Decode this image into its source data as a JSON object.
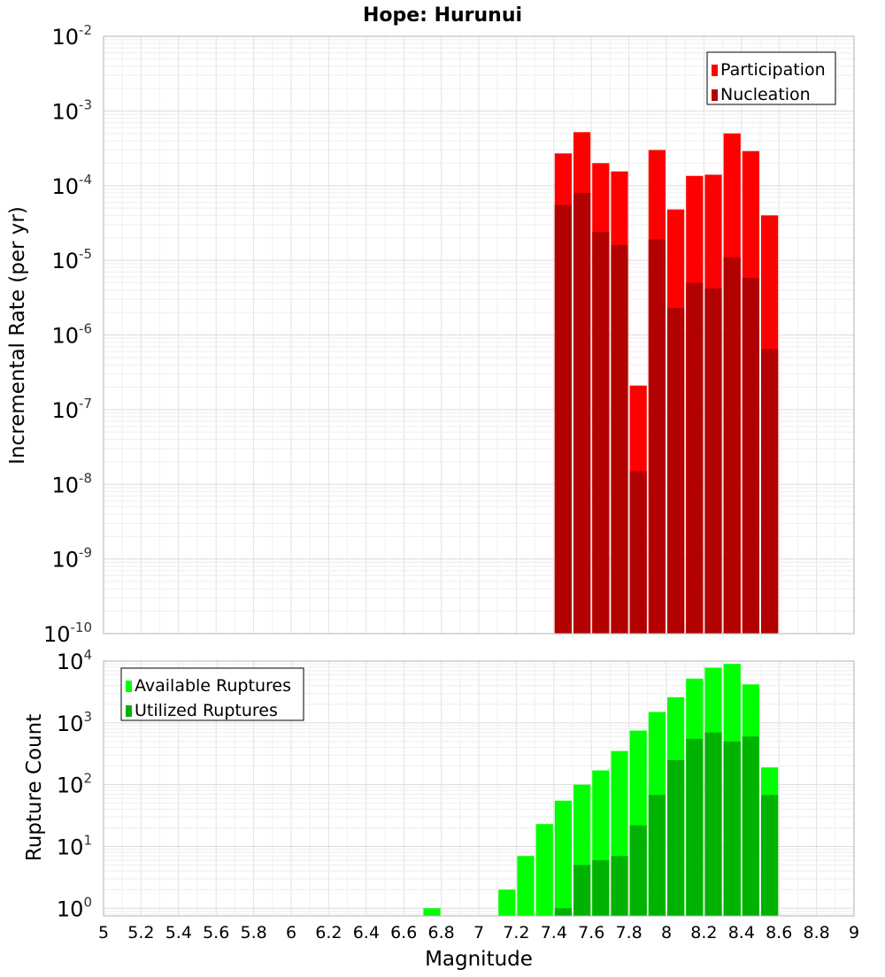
{
  "chart_data": [
    {
      "type": "bar",
      "title": "Hope: Hurunui",
      "xlabel": "",
      "ylabel": "Incremental Rate (per yr)",
      "yscale": "log",
      "ylim": [
        1e-10,
        0.01
      ],
      "xlim": [
        5,
        9
      ],
      "grid": true,
      "legend_position": "top-right",
      "x": [
        7.45,
        7.55,
        7.65,
        7.75,
        7.85,
        7.95,
        8.05,
        8.15,
        8.25,
        8.35,
        8.45,
        8.55
      ],
      "series": [
        {
          "name": "Participation",
          "color": "#ff0000",
          "values": [
            0.00027,
            0.00052,
            0.0002,
            0.000155,
            2.1e-07,
            0.0003,
            4.8e-05,
            0.000135,
            0.00014,
            0.0005,
            0.00029,
            4e-05
          ]
        },
        {
          "name": "Nucleation",
          "color": "#b30000",
          "values": [
            5.5e-05,
            8e-05,
            2.4e-05,
            1.6e-05,
            1.5e-08,
            1.9e-05,
            2.3e-06,
            5e-06,
            4.2e-06,
            1.1e-05,
            5.8e-06,
            6.5e-07
          ]
        }
      ]
    },
    {
      "type": "bar",
      "title": "",
      "xlabel": "Magnitude",
      "ylabel": "Rupture Count",
      "yscale": "log",
      "ylim": [
        0.75,
        10000
      ],
      "xlim": [
        5,
        9
      ],
      "grid": true,
      "legend_position": "top-left",
      "x": [
        6.75,
        7.15,
        7.25,
        7.35,
        7.45,
        7.55,
        7.65,
        7.75,
        7.85,
        7.95,
        8.05,
        8.15,
        8.25,
        8.35,
        8.45,
        8.55
      ],
      "series": [
        {
          "name": "Available Ruptures",
          "color": "#00ff00",
          "values": [
            1,
            2,
            7,
            23,
            55,
            100,
            170,
            350,
            750,
            1500,
            2600,
            5200,
            7800,
            9000,
            4200,
            190
          ]
        },
        {
          "name": "Utilized Ruptures",
          "color": "#00b300",
          "values": [
            0,
            0,
            0,
            0,
            1,
            5,
            6,
            7,
            22,
            68,
            250,
            550,
            700,
            500,
            600,
            68
          ]
        }
      ]
    }
  ],
  "x_ticks": [
    "5",
    "5.2",
    "5.4",
    "5.6",
    "5.8",
    "6",
    "6.2",
    "6.4",
    "6.6",
    "6.8",
    "7",
    "7.2",
    "7.4",
    "7.6",
    "7.8",
    "8",
    "8.2",
    "8.4",
    "8.6",
    "8.8",
    "9"
  ],
  "top_y_ticks": [
    {
      "base": "10",
      "exp": "-2"
    },
    {
      "base": "10",
      "exp": "-3"
    },
    {
      "base": "10",
      "exp": "-4"
    },
    {
      "base": "10",
      "exp": "-5"
    },
    {
      "base": "10",
      "exp": "-6"
    },
    {
      "base": "10",
      "exp": "-7"
    },
    {
      "base": "10",
      "exp": "-8"
    },
    {
      "base": "10",
      "exp": "-9"
    },
    {
      "base": "10",
      "exp": "-10"
    }
  ],
  "bottom_y_ticks": [
    {
      "base": "10",
      "exp": "4"
    },
    {
      "base": "10",
      "exp": "3"
    },
    {
      "base": "10",
      "exp": "2"
    },
    {
      "base": "10",
      "exp": "1"
    },
    {
      "base": "10",
      "exp": "0"
    }
  ],
  "colors": {
    "participation": "#ff0000",
    "nucleation": "#b30000",
    "available": "#00ff00",
    "utilized": "#00b300",
    "grid": "#e6e6e6",
    "frame": "#b3b3b3"
  }
}
